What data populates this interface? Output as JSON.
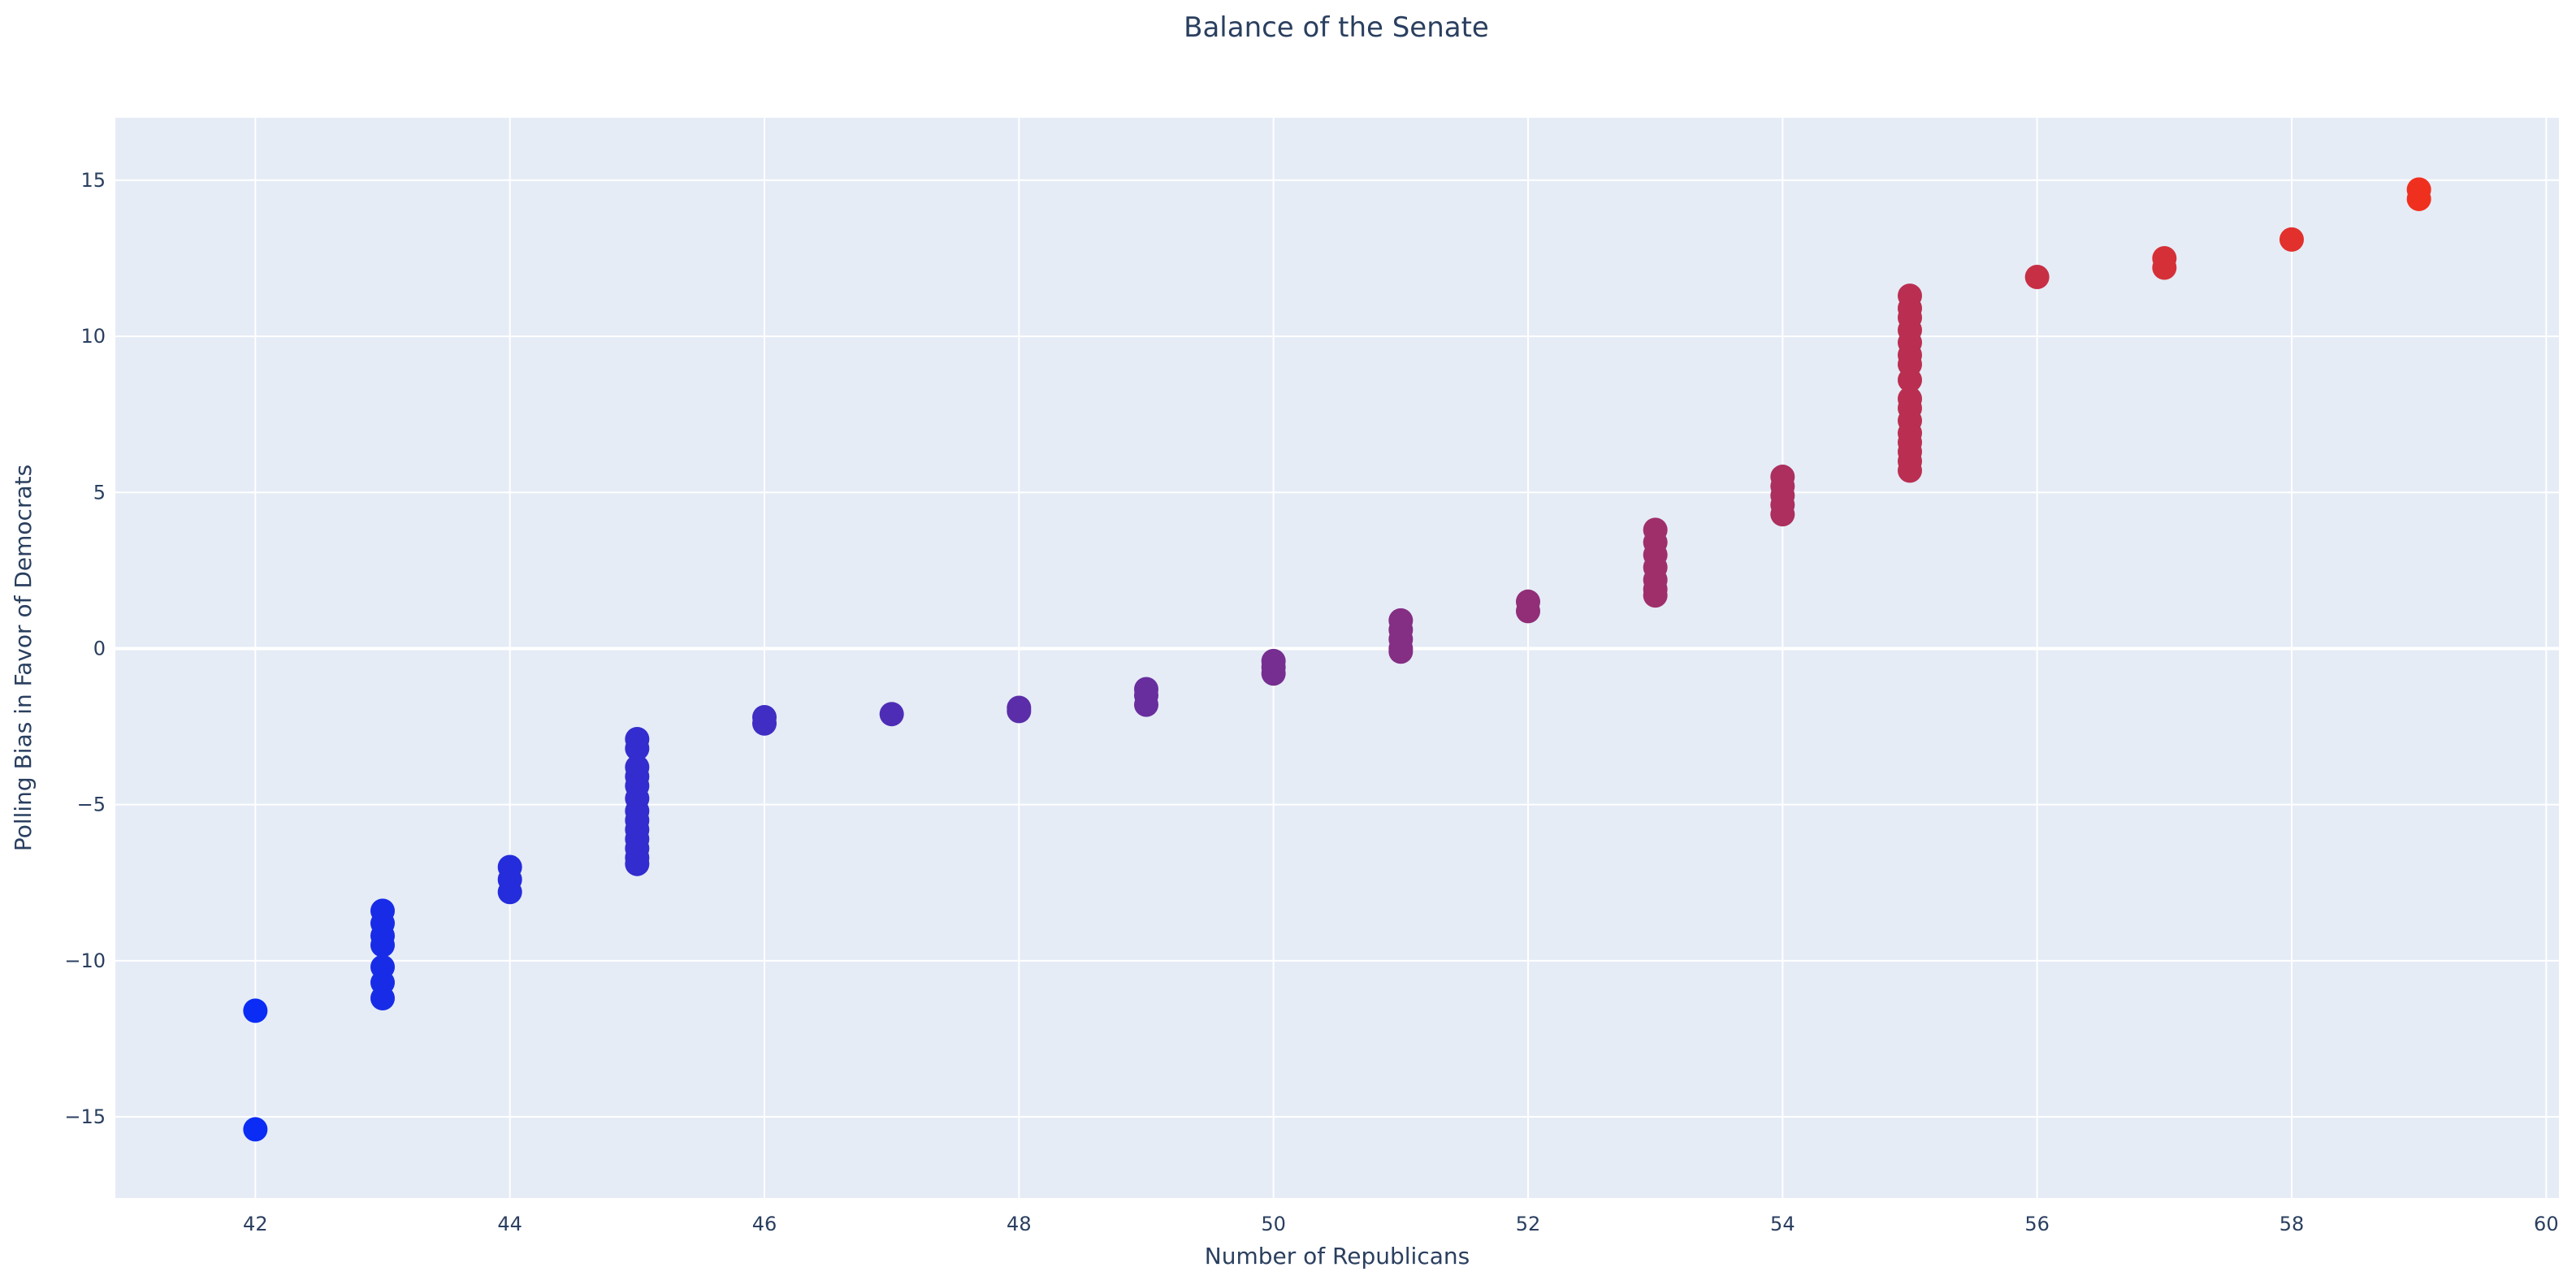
{
  "colors": {
    "plot_background": "#e5ecf6",
    "grid": "#ffffff",
    "text": "#2a3f5f",
    "low_color": "#0a2cf5",
    "high_color": "#f0301f"
  },
  "chart_data": {
    "type": "scatter",
    "title": "Balance of the Senate",
    "xlabel": "Number of Republicans",
    "ylabel": "Polling Bias in Favor of Democrats",
    "xlim": [
      40.9,
      60.1
    ],
    "ylim": [
      -17.6,
      17.0
    ],
    "xticks": [
      42,
      44,
      46,
      48,
      50,
      52,
      54,
      56,
      58,
      60
    ],
    "yticks": [
      15,
      10,
      5,
      0,
      -5,
      -10,
      -15
    ],
    "xtick_labels": [
      "42",
      "44",
      "46",
      "48",
      "50",
      "52",
      "54",
      "56",
      "58",
      "60"
    ],
    "ytick_labels": [
      "15",
      "10",
      "5",
      "0",
      "−5",
      "−10",
      "−15"
    ],
    "grid": true,
    "marker_color_encodes": "x",
    "points": [
      {
        "x": 42,
        "y": -11.6
      },
      {
        "x": 42,
        "y": -15.4
      },
      {
        "x": 43,
        "y": -8.4
      },
      {
        "x": 43,
        "y": -8.8
      },
      {
        "x": 43,
        "y": -9.2
      },
      {
        "x": 43,
        "y": -9.5
      },
      {
        "x": 43,
        "y": -10.2
      },
      {
        "x": 43,
        "y": -10.7
      },
      {
        "x": 43,
        "y": -11.2
      },
      {
        "x": 44,
        "y": -7.0
      },
      {
        "x": 44,
        "y": -7.4
      },
      {
        "x": 44,
        "y": -7.8
      },
      {
        "x": 45,
        "y": -2.9
      },
      {
        "x": 45,
        "y": -3.2
      },
      {
        "x": 45,
        "y": -3.8
      },
      {
        "x": 45,
        "y": -4.1
      },
      {
        "x": 45,
        "y": -4.4
      },
      {
        "x": 45,
        "y": -4.8
      },
      {
        "x": 45,
        "y": -5.2
      },
      {
        "x": 45,
        "y": -5.5
      },
      {
        "x": 45,
        "y": -5.8
      },
      {
        "x": 45,
        "y": -6.1
      },
      {
        "x": 45,
        "y": -6.4
      },
      {
        "x": 45,
        "y": -6.7
      },
      {
        "x": 45,
        "y": -6.9
      },
      {
        "x": 46,
        "y": -2.2
      },
      {
        "x": 46,
        "y": -2.4
      },
      {
        "x": 47,
        "y": -2.1
      },
      {
        "x": 48,
        "y": -1.9
      },
      {
        "x": 48,
        "y": -2.0
      },
      {
        "x": 49,
        "y": -1.3
      },
      {
        "x": 49,
        "y": -1.5
      },
      {
        "x": 49,
        "y": -1.8
      },
      {
        "x": 50,
        "y": -0.4
      },
      {
        "x": 50,
        "y": -0.6
      },
      {
        "x": 50,
        "y": -0.8
      },
      {
        "x": 51,
        "y": 0.9
      },
      {
        "x": 51,
        "y": 0.6
      },
      {
        "x": 51,
        "y": 0.3
      },
      {
        "x": 51,
        "y": 0.0
      },
      {
        "x": 51,
        "y": -0.1
      },
      {
        "x": 52,
        "y": 1.5
      },
      {
        "x": 52,
        "y": 1.2
      },
      {
        "x": 53,
        "y": 3.8
      },
      {
        "x": 53,
        "y": 3.4
      },
      {
        "x": 53,
        "y": 3.0
      },
      {
        "x": 53,
        "y": 2.6
      },
      {
        "x": 53,
        "y": 2.2
      },
      {
        "x": 53,
        "y": 1.9
      },
      {
        "x": 53,
        "y": 1.7
      },
      {
        "x": 54,
        "y": 5.5
      },
      {
        "x": 54,
        "y": 5.2
      },
      {
        "x": 54,
        "y": 4.9
      },
      {
        "x": 54,
        "y": 4.6
      },
      {
        "x": 54,
        "y": 4.3
      },
      {
        "x": 55,
        "y": 11.3
      },
      {
        "x": 55,
        "y": 10.9
      },
      {
        "x": 55,
        "y": 10.6
      },
      {
        "x": 55,
        "y": 10.2
      },
      {
        "x": 55,
        "y": 9.8
      },
      {
        "x": 55,
        "y": 9.4
      },
      {
        "x": 55,
        "y": 9.1
      },
      {
        "x": 55,
        "y": 8.6
      },
      {
        "x": 55,
        "y": 8.0
      },
      {
        "x": 55,
        "y": 7.7
      },
      {
        "x": 55,
        "y": 7.3
      },
      {
        "x": 55,
        "y": 6.9
      },
      {
        "x": 55,
        "y": 6.6
      },
      {
        "x": 55,
        "y": 6.3
      },
      {
        "x": 55,
        "y": 6.0
      },
      {
        "x": 55,
        "y": 5.7
      },
      {
        "x": 56,
        "y": 11.9
      },
      {
        "x": 57,
        "y": 12.5
      },
      {
        "x": 57,
        "y": 12.2
      },
      {
        "x": 58,
        "y": 13.1
      },
      {
        "x": 59,
        "y": 14.7
      },
      {
        "x": 59,
        "y": 14.4
      }
    ]
  }
}
